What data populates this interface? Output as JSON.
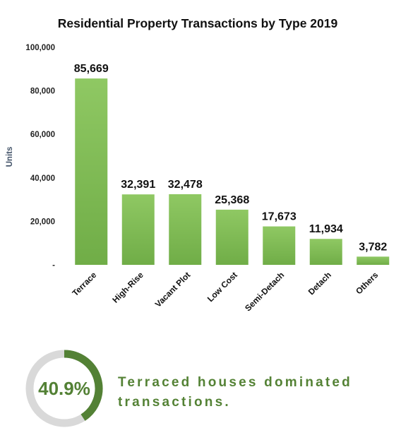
{
  "chart_data": {
    "type": "bar",
    "title": "Residential Property Transactions by Type 2019",
    "ylabel": "Units",
    "xlabel": "",
    "ylim": [
      0,
      100000
    ],
    "yticks": [
      {
        "value": 0,
        "label": "-"
      },
      {
        "value": 20000,
        "label": "20,000"
      },
      {
        "value": 40000,
        "label": "40,000"
      },
      {
        "value": 60000,
        "label": "60,000"
      },
      {
        "value": 80000,
        "label": "80,000"
      },
      {
        "value": 100000,
        "label": "100,000"
      }
    ],
    "categories": [
      "Terrace",
      "High-Rise",
      "Vacant Plot",
      "Low Cost",
      "Semi-Detach",
      "Detach",
      "Others"
    ],
    "values": [
      85669,
      32391,
      32478,
      25368,
      17673,
      11934,
      3782
    ],
    "value_labels": [
      "85,669",
      "32,391",
      "32,478",
      "25,368",
      "17,673",
      "11,934",
      "3,782"
    ],
    "grid": false,
    "bar_color": "#70ad47",
    "bar_color_light": "#8fc863"
  },
  "highlight": {
    "percent": 40.9,
    "percent_label": "40.9%",
    "ring_color": "#538135",
    "ring_track_color": "#d9d9d9",
    "text": "Terraced houses dominated transactions."
  }
}
